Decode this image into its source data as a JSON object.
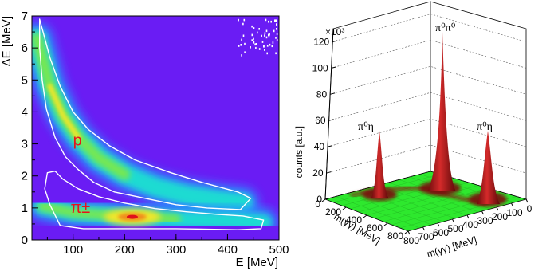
{
  "chart_data": [
    {
      "type": "heatmap",
      "xlabel": "E [MeV]",
      "ylabel": "ΔE [MeV]",
      "xlim": [
        20,
        500
      ],
      "ylim": [
        0,
        7
      ],
      "xticks": [
        "100",
        "200",
        "300",
        "400",
        "500"
      ],
      "yticks": [
        "0",
        "1",
        "2",
        "3",
        "4",
        "5",
        "6",
        "7"
      ],
      "background_color": "#6a1cf4",
      "bands": [
        {
          "label": "p",
          "label_at": [
            100,
            2.95
          ],
          "ridge": [
            [
              30,
              6.3
            ],
            [
              55,
              4.8
            ],
            [
              80,
              3.9
            ],
            [
              110,
              3.2
            ],
            [
              150,
              2.55
            ],
            [
              200,
              2.05
            ],
            [
              260,
              1.65
            ],
            [
              320,
              1.4
            ],
            [
              380,
              1.25
            ],
            [
              430,
              1.15
            ]
          ],
          "contour": [
            [
              35,
              6.9
            ],
            [
              55,
              5.7
            ],
            [
              75,
              4.8
            ],
            [
              100,
              4.0
            ],
            [
              130,
              3.45
            ],
            [
              170,
              2.95
            ],
            [
              220,
              2.5
            ],
            [
              290,
              2.1
            ],
            [
              350,
              1.8
            ],
            [
              420,
              1.5
            ],
            [
              445,
              1.3
            ],
            [
              425,
              0.95
            ],
            [
              360,
              1.0
            ],
            [
              300,
              1.1
            ],
            [
              240,
              1.3
            ],
            [
              180,
              1.5
            ],
            [
              140,
              1.8
            ],
            [
              110,
              2.2
            ],
            [
              85,
              2.6
            ],
            [
              65,
              3.2
            ],
            [
              48,
              4.1
            ],
            [
              40,
              5.0
            ],
            [
              35,
              6.0
            ]
          ]
        },
        {
          "label": "π±",
          "label_at": [
            95,
            0.85
          ],
          "ridge": [
            [
              40,
              1.05
            ],
            [
              100,
              0.85
            ],
            [
              160,
              0.78
            ],
            [
              200,
              0.72
            ],
            [
              230,
              0.72
            ],
            [
              300,
              0.65
            ],
            [
              400,
              0.6
            ],
            [
              470,
              0.55
            ]
          ],
          "hotspot": [
            215,
            0.72
          ],
          "contour": [
            [
              50,
              2.1
            ],
            [
              45,
              1.6
            ],
            [
              55,
              1.1
            ],
            [
              75,
              0.45
            ],
            [
              120,
              0.35
            ],
            [
              300,
              0.35
            ],
            [
              420,
              0.32
            ],
            [
              465,
              0.35
            ],
            [
              470,
              0.62
            ],
            [
              430,
              0.75
            ],
            [
              380,
              0.8
            ],
            [
              320,
              0.88
            ],
            [
              260,
              0.98
            ],
            [
              200,
              1.15
            ],
            [
              150,
              1.35
            ],
            [
              110,
              1.6
            ],
            [
              80,
              1.9
            ],
            [
              65,
              2.15
            ]
          ]
        }
      ],
      "sparse_noise_region": {
        "x": [
          420,
          500
        ],
        "y": [
          5.8,
          7
        ]
      },
      "contour_color": "#ffffff"
    },
    {
      "type": "surface",
      "xlabel": "m(γγ) [MeV]",
      "ylabel": "m(γγ) [MeV]",
      "zlabel": "counts [a.u.]",
      "zmultiplier": "×10³",
      "zlim": [
        0,
        130
      ],
      "zticks": [
        "0",
        "20",
        "40",
        "60",
        "80",
        "100",
        "120"
      ],
      "xticks_left": [
        "0",
        "200",
        "400",
        "600",
        "800"
      ],
      "xticks_right": [
        "800",
        "700",
        "600",
        "500",
        "400",
        "300",
        "200",
        "100",
        "0"
      ],
      "floor_color": "#2ee82e",
      "peak_color": "#b81818",
      "peaks": [
        {
          "label": "π⁰η",
          "height_k": 55
        },
        {
          "label": "π⁰π⁰",
          "height_k": 126
        },
        {
          "label": "π⁰η",
          "height_k": 60
        }
      ]
    }
  ]
}
